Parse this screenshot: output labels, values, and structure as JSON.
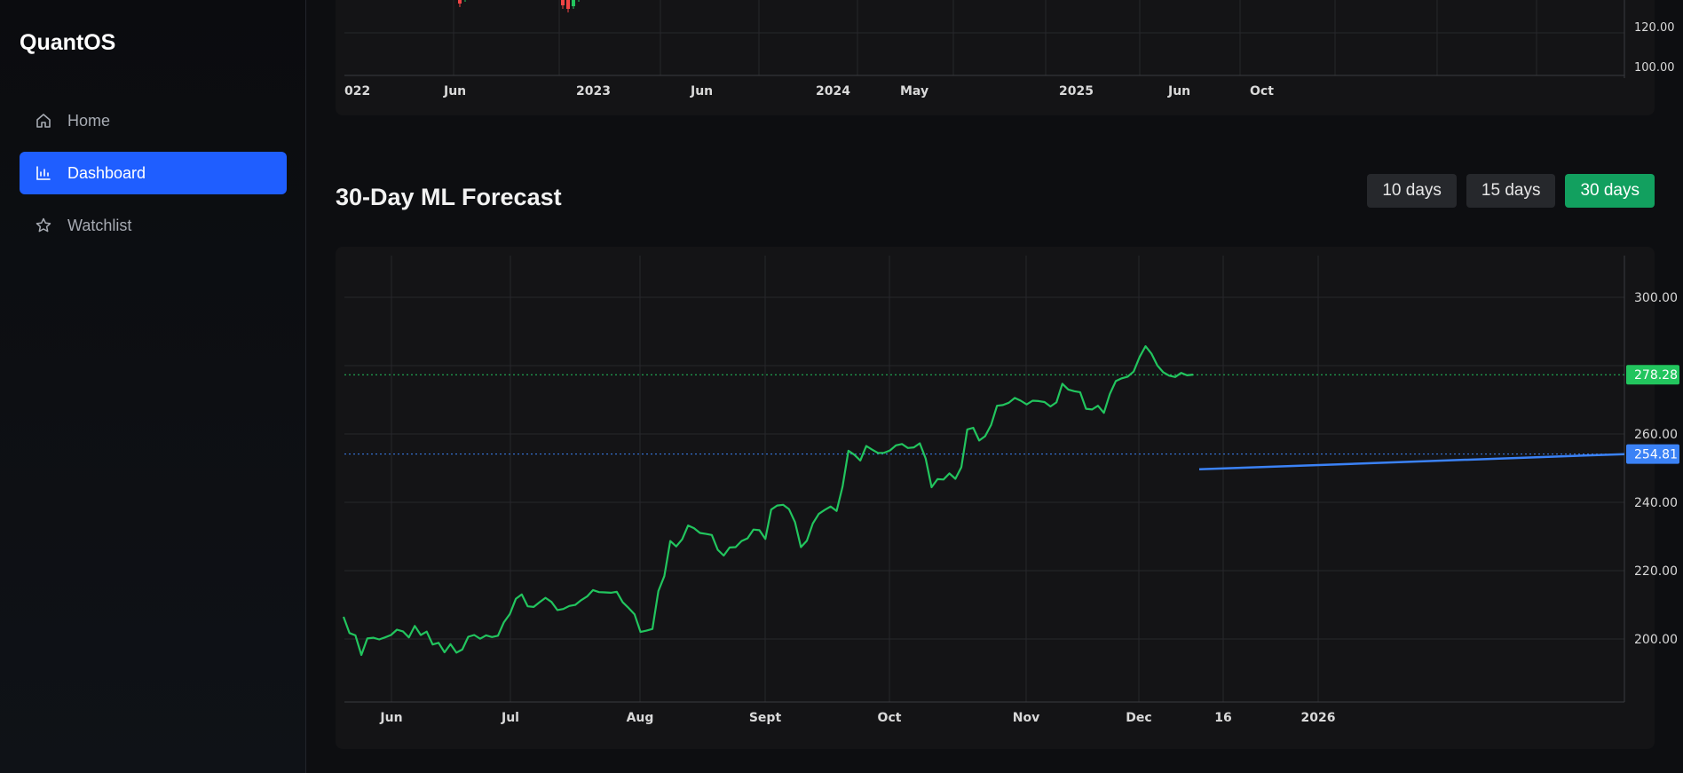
{
  "sidebar": {
    "brand": "QuantOS",
    "items": [
      {
        "label": "Home",
        "icon": "home-icon",
        "active": false
      },
      {
        "label": "Dashboard",
        "icon": "bar-chart-icon",
        "active": true
      },
      {
        "label": "Watchlist",
        "icon": "star-icon",
        "active": false
      }
    ]
  },
  "colors": {
    "accent": "#1f5eff",
    "range_active": "#12a05f",
    "history_line": "#22c55e",
    "forecast_line": "#3b82f6",
    "candle_up": "#22c55e",
    "candle_down": "#ef4444"
  },
  "price_chart": {
    "y_ticks": [
      "120.00",
      "100.00"
    ],
    "x_ticks": [
      "022",
      "Jun",
      "2023",
      "Jun",
      "2024",
      "May",
      "2025",
      "Jun",
      "Oct"
    ]
  },
  "forecast": {
    "title": "30-Day ML Forecast",
    "ranges": [
      {
        "label": "10 days",
        "active": false
      },
      {
        "label": "15 days",
        "active": false
      },
      {
        "label": "30 days",
        "active": true
      }
    ],
    "chart_data": {
      "type": "line",
      "y_ticks": [
        "300.00",
        "260.00",
        "240.00",
        "220.00",
        "200.00"
      ],
      "x_ticks": [
        "Jun",
        "Jul",
        "Aug",
        "Sept",
        "Oct",
        "Nov",
        "Dec",
        "16",
        "2026"
      ],
      "ylim": [
        181.5,
        313.5
      ],
      "last_price_label": "278.28",
      "last_price": 278.28,
      "forecast_end_label": "254.81",
      "forecast_end": 254.81,
      "series": [
        {
          "values": [
            206.7,
            201.9,
            201.2,
            195.4,
            200.3,
            200.5,
            200.0,
            200.6,
            201.3,
            202.9,
            202.4,
            200.6,
            204.0,
            201.3,
            202.3,
            198.5,
            199.0,
            196.2,
            198.6,
            196.1,
            197.0,
            200.8,
            201.3,
            200.2,
            201.2,
            200.7,
            201.1,
            205.1,
            207.5,
            212.0,
            213.3,
            209.8,
            209.6,
            211.0,
            212.3,
            211.1,
            208.7,
            209.0,
            209.9,
            210.2,
            211.6,
            212.7,
            214.6,
            214.0,
            213.9,
            213.8,
            214.1,
            211.0,
            209.3,
            207.4,
            202.2,
            202.6,
            203.1,
            214.3,
            218.7,
            229.1,
            227.5,
            229.6,
            233.7,
            232.9,
            231.5,
            231.2,
            230.9,
            226.5,
            224.8,
            227.2,
            227.3,
            229.1,
            229.9,
            232.5,
            232.3,
            229.7,
            238.4,
            239.6,
            239.8,
            238.5,
            234.7,
            227.3,
            229.2,
            234.3,
            237.1,
            238.3,
            239.3,
            238.0,
            245.2,
            255.8,
            254.6,
            252.9,
            257.2,
            256.1,
            255.1,
            255.2,
            255.9,
            257.4,
            257.8,
            256.6,
            256.8,
            258.0,
            253.5,
            245.0,
            247.4,
            247.3,
            249.1,
            247.5,
            250.9,
            262.1,
            262.6,
            258.8,
            260.1,
            263.4,
            269.1,
            269.3,
            270.0,
            271.4,
            270.6,
            269.5,
            270.6,
            270.5,
            270.2,
            268.9,
            270.1,
            275.6,
            273.9,
            273.4,
            273.1,
            268.2,
            268.0,
            269.1,
            267.0,
            272.6,
            276.4,
            277.2,
            277.7,
            279.2,
            283.5,
            286.7,
            284.5,
            281.0,
            279.0,
            278.0,
            277.6,
            278.8,
            278.1,
            278.3
          ],
          "color": "#22c55e"
        },
        {
          "values": [
            250.3,
            254.8
          ],
          "color": "#3b82f6"
        }
      ]
    }
  }
}
